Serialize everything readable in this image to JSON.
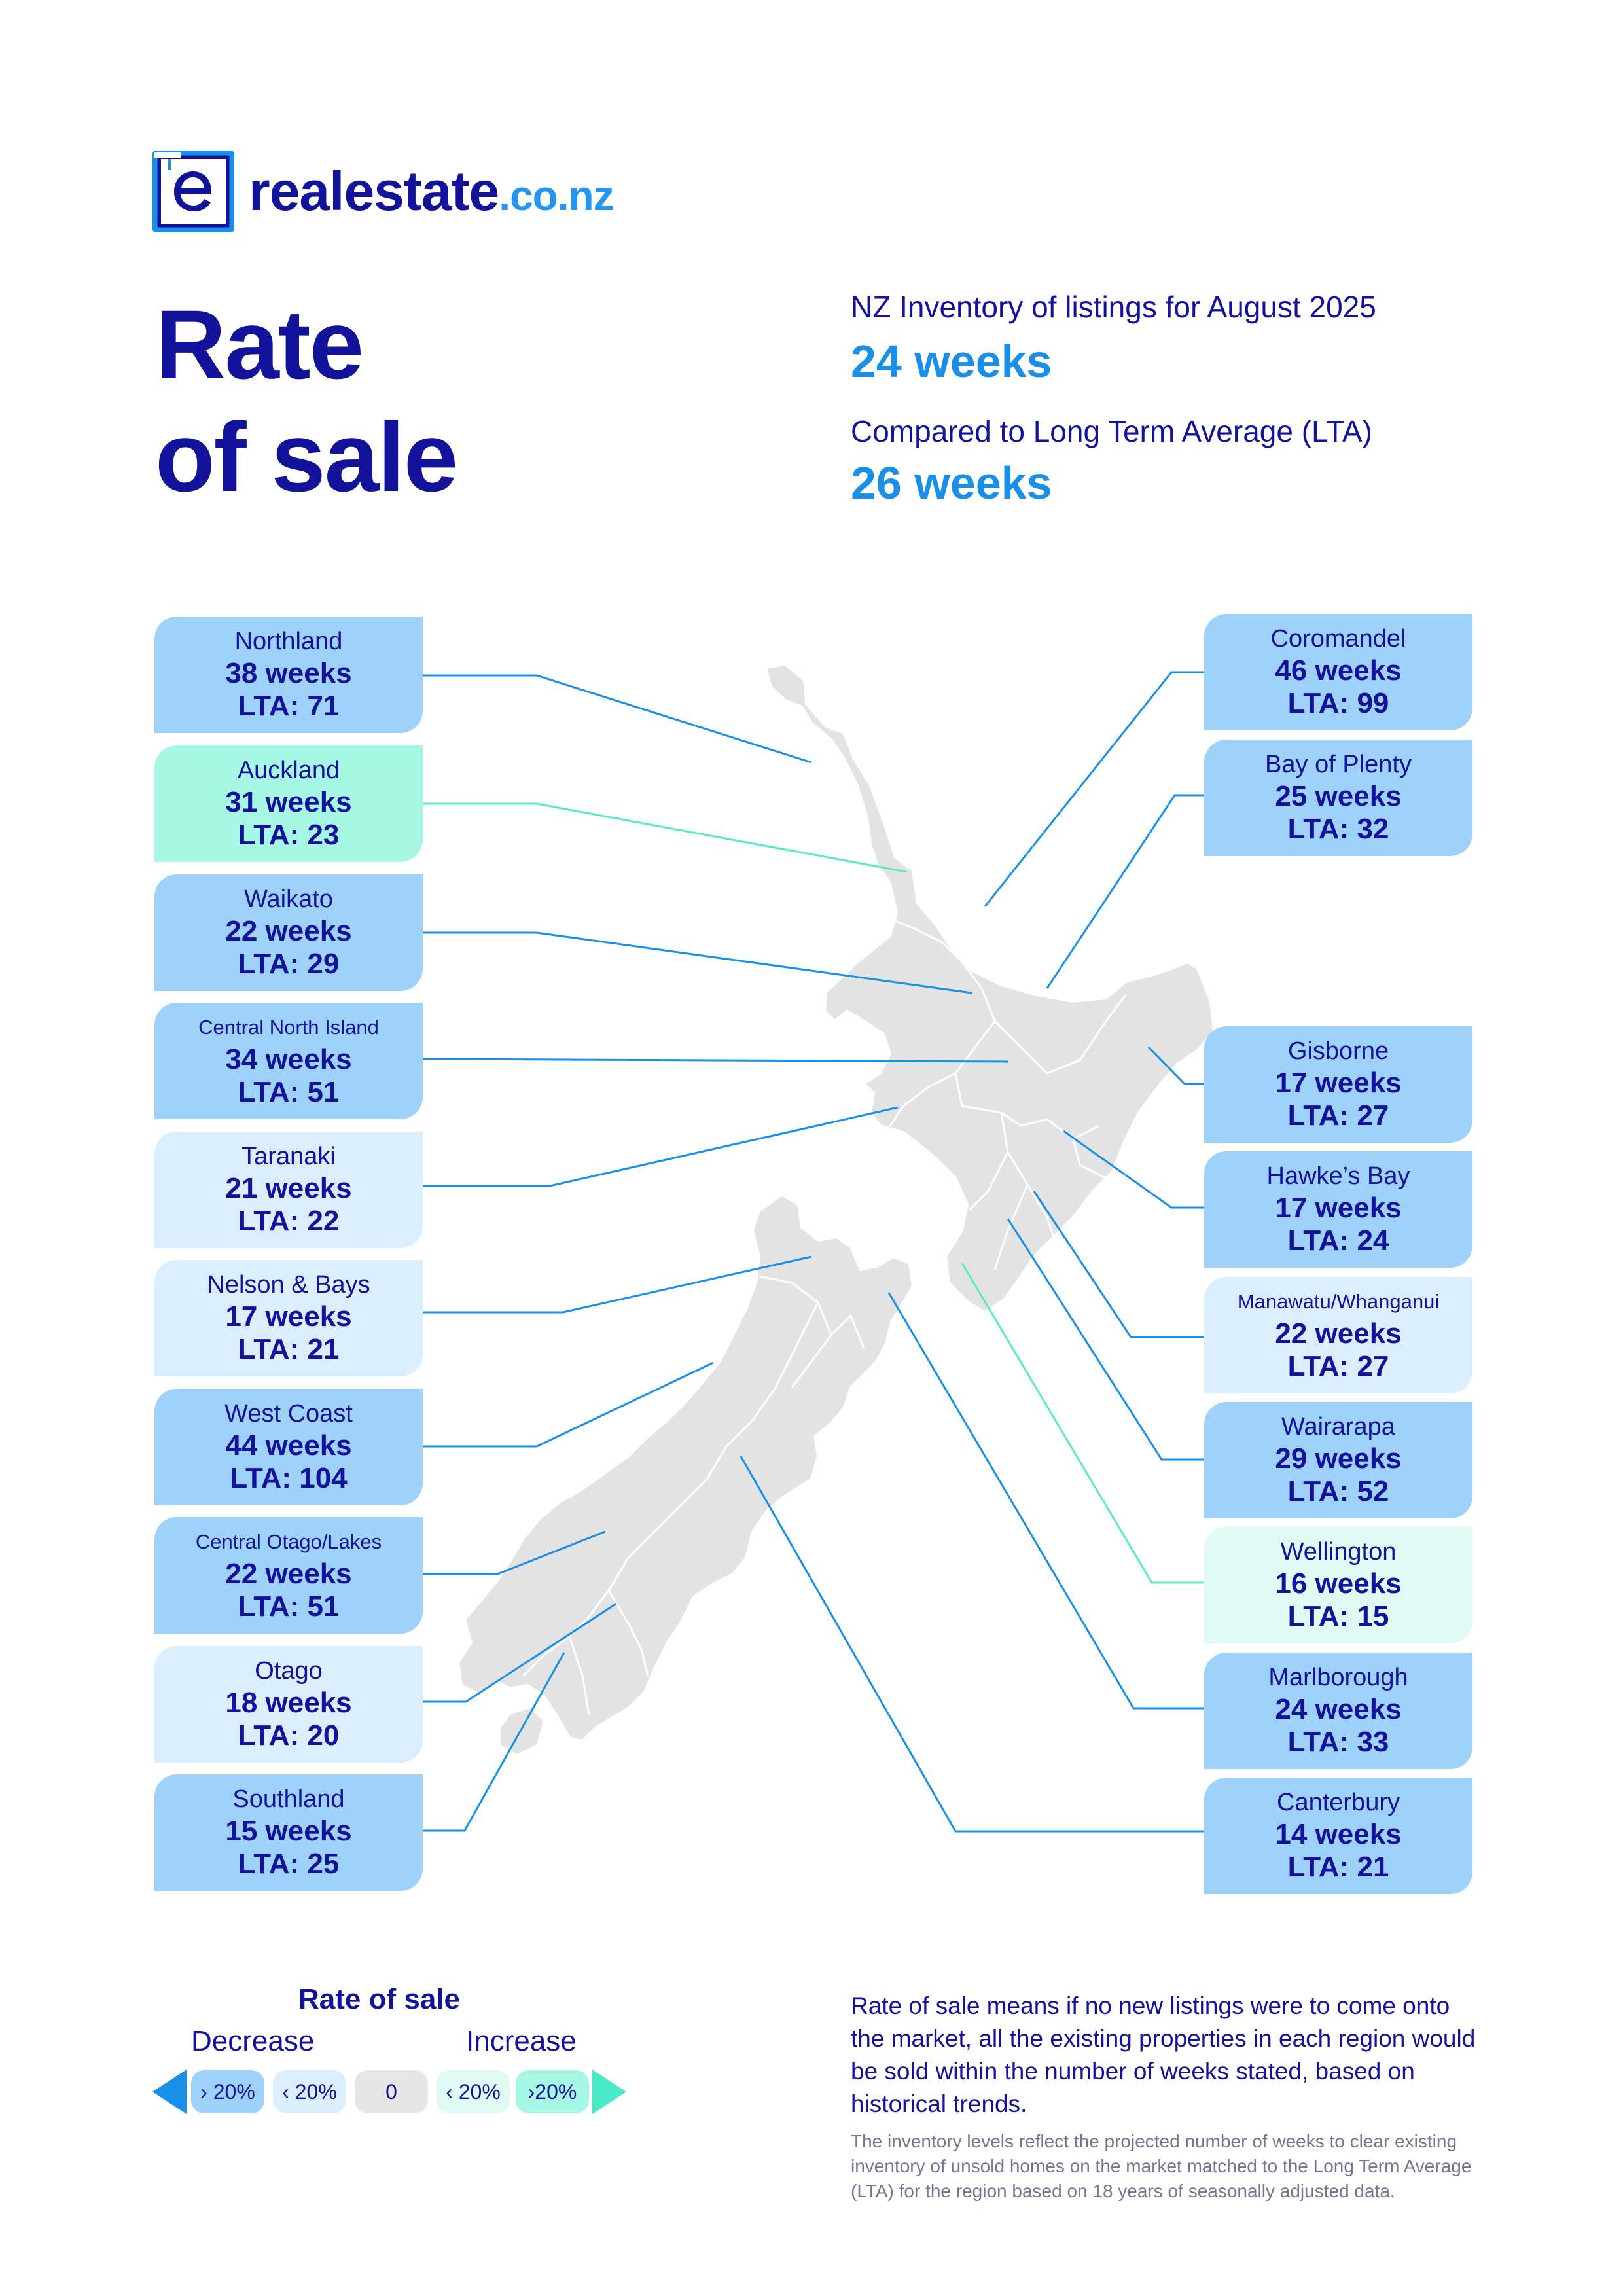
{
  "logo": {
    "brand": "realestate",
    "tld": ".co.nz"
  },
  "title": {
    "line1": "Rate",
    "line2": "of sale"
  },
  "headline": {
    "inventory_label": "NZ Inventory of listings for August 2025",
    "inventory_value": "24 weeks",
    "lta_label": "Compared to Long Term Average (LTA)",
    "lta_value": "26 weeks"
  },
  "regions_left": [
    {
      "name": "Northland",
      "weeks": "38 weeks",
      "lta": "LTA: 71",
      "category": "more than 20% decrease"
    },
    {
      "name": "Auckland",
      "weeks": "31 weeks",
      "lta": "LTA: 23",
      "category": "more than 20% increase"
    },
    {
      "name": "Waikato",
      "weeks": "22 weeks",
      "lta": "LTA: 29",
      "category": "more than 20% decrease"
    },
    {
      "name": "Central North Island",
      "weeks": "34 weeks",
      "lta": "LTA: 51",
      "category": "more than 20% decrease"
    },
    {
      "name": "Taranaki",
      "weeks": "21 weeks",
      "lta": "LTA: 22",
      "category": "less than 20% decrease"
    },
    {
      "name": "Nelson & Bays",
      "weeks": "17 weeks",
      "lta": "LTA: 21",
      "category": "less than 20% decrease"
    },
    {
      "name": "West Coast",
      "weeks": "44 weeks",
      "lta": "LTA: 104",
      "category": "more than 20% decrease"
    },
    {
      "name": "Central Otago/Lakes",
      "weeks": "22 weeks",
      "lta": "LTA: 51",
      "category": "more than 20% decrease"
    },
    {
      "name": "Otago",
      "weeks": "18 weeks",
      "lta": "LTA: 20",
      "category": "less than 20% decrease"
    },
    {
      "name": "Southland",
      "weeks": "15 weeks",
      "lta": "LTA: 25",
      "category": "more than 20% decrease"
    }
  ],
  "regions_right": [
    {
      "name": "Coromandel",
      "weeks": "46 weeks",
      "lta": "LTA: 99",
      "category": "more than 20% decrease"
    },
    {
      "name": "Bay of Plenty",
      "weeks": "25 weeks",
      "lta": "LTA: 32",
      "category": "more than 20% decrease"
    },
    {
      "name": "Gisborne",
      "weeks": "17 weeks",
      "lta": "LTA: 27",
      "category": "more than 20% decrease"
    },
    {
      "name": "Hawke’s Bay",
      "weeks": "17 weeks",
      "lta": "LTA: 24",
      "category": "more than 20% decrease"
    },
    {
      "name": "Manawatu/Whanganui",
      "weeks": "22 weeks",
      "lta": "LTA: 27",
      "category": "less than 20% decrease"
    },
    {
      "name": "Wairarapa",
      "weeks": "29 weeks",
      "lta": "LTA: 52",
      "category": "more than 20% decrease"
    },
    {
      "name": "Wellington",
      "weeks": "16 weeks",
      "lta": "LTA: 15",
      "category": "less than 20% increase"
    },
    {
      "name": "Marlborough",
      "weeks": "24 weeks",
      "lta": "LTA: 33",
      "category": "more than 20% decrease"
    },
    {
      "name": "Canterbury",
      "weeks": "14 weeks",
      "lta": "LTA: 21",
      "category": "more than 20% decrease"
    }
  ],
  "legend": {
    "title": "Rate of sale",
    "decrease": "Decrease",
    "increase": "Increase",
    "items": [
      {
        "label": "› 20%",
        "color": "#9fd2fb"
      },
      {
        "label": "‹ 20%",
        "color": "#dbeefd"
      },
      {
        "label": "0",
        "color": "#e6e6e6"
      },
      {
        "label": "‹ 20%",
        "color": "#dffbf4"
      },
      {
        "label": "›20%",
        "color": "#a6f7e4"
      }
    ]
  },
  "notes": {
    "main": "Rate of sale means if no new listings were to come onto the market, all the existing properties in each region would be sold within the number of weeks stated, based on historical trends.",
    "small": "The inventory levels reflect the projected number of weeks to clear existing inventory of unsold homes on the market matched to the Long Term Average (LTA) for the region based on 18 years of seasonally adjusted data."
  },
  "colors": {
    "navy": "#13129a",
    "accent_blue": "#1a8fe8",
    "decrease_strong": "#9fd2fb",
    "decrease_light": "#dbeefd",
    "increase_strong": "#a6f7e4",
    "increase_light": "#dffbf4",
    "map_land": "#e3e3e3"
  }
}
